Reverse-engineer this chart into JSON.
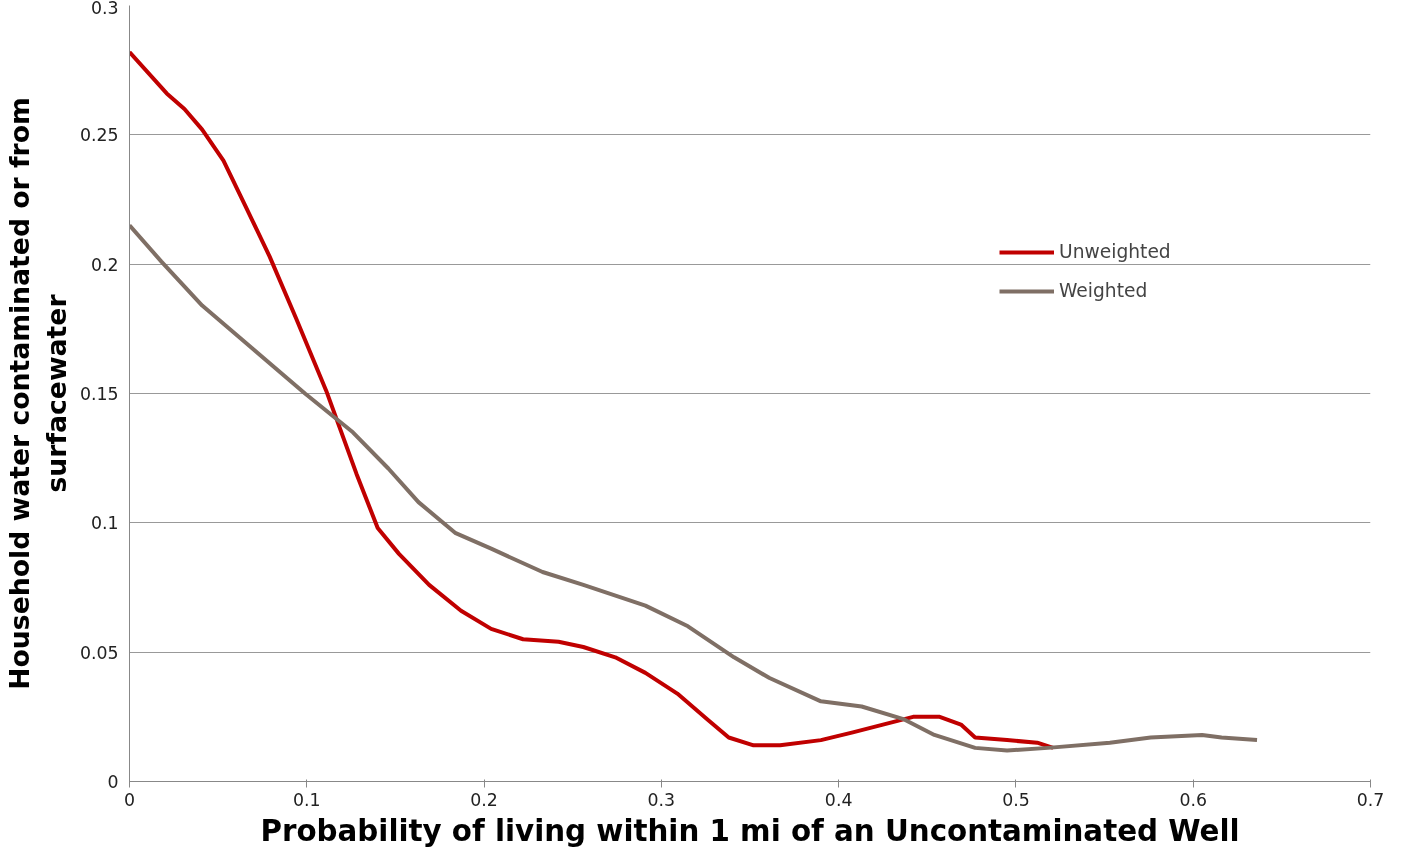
{
  "chart_data": {
    "type": "line",
    "xlabel": "Probability of living within 1 mi of an Uncontaminated Well",
    "ylabel": "Household water contaminated or from surfacewater",
    "xlim": [
      0,
      0.7
    ],
    "xticks": [
      0,
      0.1,
      0.2,
      0.3,
      0.4,
      0.5,
      0.6,
      0.7
    ],
    "ylim": [
      0,
      0.3
    ],
    "yticks": [
      0,
      0.05,
      0.1,
      0.15,
      0.2,
      0.25,
      0.3
    ],
    "grid": "y",
    "legend": "right",
    "marker": "none",
    "line_style": "solid",
    "series": [
      {
        "name": "Unweighted",
        "color": "#c00000",
        "x": [
          0,
          0.021,
          0.031,
          0.041,
          0.053,
          0.065,
          0.079,
          0.094,
          0.111,
          0.128,
          0.14,
          0.152,
          0.169,
          0.187,
          0.204,
          0.222,
          0.242,
          0.256,
          0.274,
          0.291,
          0.309,
          0.326,
          0.338,
          0.352,
          0.367,
          0.39,
          0.408,
          0.425,
          0.442,
          0.457,
          0.469,
          0.477,
          0.495,
          0.512,
          0.521
        ],
        "values": [
          0.282,
          0.266,
          0.26,
          0.252,
          0.24,
          0.223,
          0.203,
          0.179,
          0.151,
          0.119,
          0.098,
          0.088,
          0.076,
          0.066,
          0.059,
          0.055,
          0.054,
          0.052,
          0.048,
          0.042,
          0.034,
          0.024,
          0.017,
          0.014,
          0.014,
          0.016,
          0.019,
          0.022,
          0.025,
          0.025,
          0.022,
          0.017,
          0.016,
          0.015,
          0.013
        ]
      },
      {
        "name": "Weighted",
        "color": "#7f6f65",
        "x": [
          0,
          0.018,
          0.041,
          0.07,
          0.099,
          0.126,
          0.146,
          0.163,
          0.184,
          0.204,
          0.233,
          0.256,
          0.291,
          0.315,
          0.341,
          0.361,
          0.39,
          0.413,
          0.437,
          0.454,
          0.477,
          0.495,
          0.518,
          0.553,
          0.576,
          0.605,
          0.616,
          0.636
        ],
        "values": [
          0.215,
          0.201,
          0.184,
          0.167,
          0.15,
          0.135,
          0.121,
          0.108,
          0.096,
          0.09,
          0.081,
          0.076,
          0.068,
          0.06,
          0.048,
          0.04,
          0.031,
          0.029,
          0.024,
          0.018,
          0.013,
          0.012,
          0.013,
          0.015,
          0.017,
          0.018,
          0.017,
          0.016
        ]
      }
    ]
  }
}
